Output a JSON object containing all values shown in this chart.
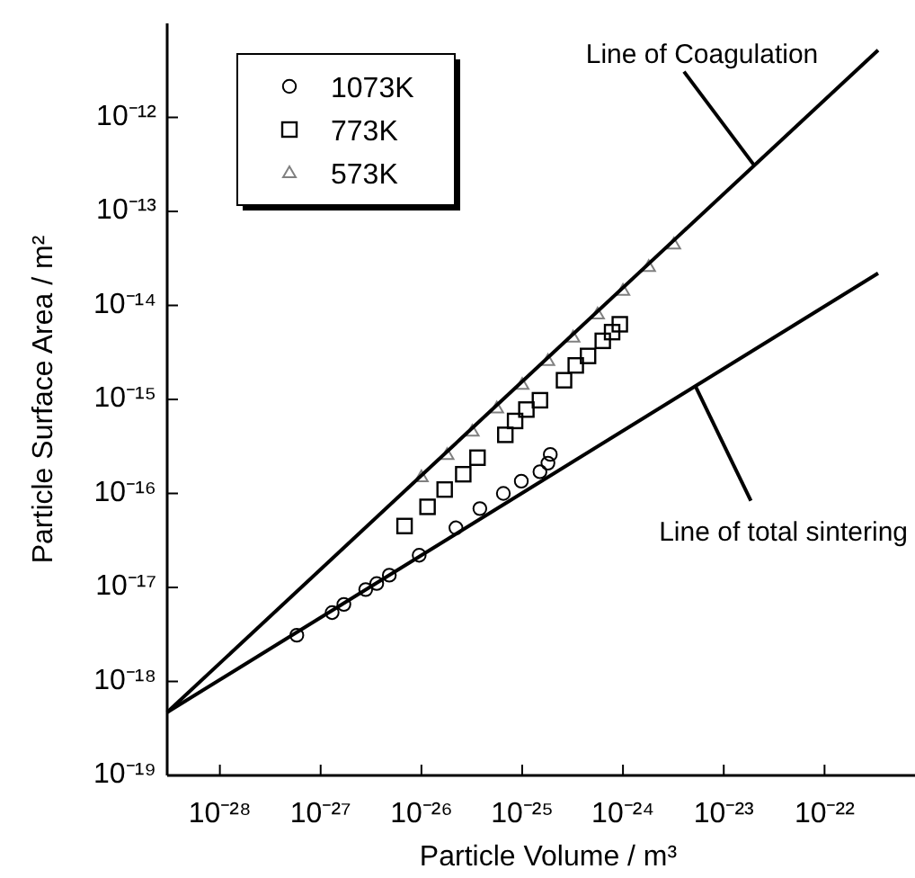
{
  "chart_data": {
    "type": "scatter",
    "xlabel": "Particle Volume / m³",
    "ylabel": "Particle Surface Area / m²",
    "log": "xy",
    "legend": "top left",
    "annotations": [
      {
        "text": "Line of Coagulation",
        "x": 2e-23,
        "y": 3.1e-13
      },
      {
        "text": "Line of total sintering",
        "x": 5.2e-24,
        "y": 1.4e-15
      }
    ],
    "xlim": [
      3e-29,
      7.9e-22
    ],
    "ylim": [
      1e-19,
      1e-11
    ],
    "xticks": [
      {
        "value": 1e-28,
        "label": "10⁻²⁸"
      },
      {
        "value": 1e-27,
        "label": "10⁻²⁷"
      },
      {
        "value": 1e-26,
        "label": "10⁻²⁶"
      },
      {
        "value": 1e-25,
        "label": "10⁻²⁵"
      },
      {
        "value": 1e-24,
        "label": "10⁻²⁴"
      },
      {
        "value": 1e-23,
        "label": "10⁻²³"
      },
      {
        "value": 1e-22,
        "label": "10⁻²²"
      }
    ],
    "yticks": [
      {
        "value": 1e-19,
        "label": "10⁻¹⁹"
      },
      {
        "value": 1e-18,
        "label": "10⁻¹⁸"
      },
      {
        "value": 1e-17,
        "label": "10⁻¹⁷"
      },
      {
        "value": 1e-16,
        "label": "10⁻¹⁶"
      },
      {
        "value": 1e-15,
        "label": "10⁻¹⁵"
      },
      {
        "value": 1e-14,
        "label": "10⁻¹⁴"
      },
      {
        "value": 1e-13,
        "label": "10⁻¹³"
      },
      {
        "value": 1e-12,
        "label": "10⁻¹²"
      }
    ],
    "series": [
      {
        "name": "1073K",
        "marker": "circle",
        "color": "#000000",
        "x": [
          5.8e-28,
          1.3e-27,
          1.7e-27,
          2.8e-27,
          3.6e-27,
          4.8e-27,
          9.5e-27,
          2.2e-26,
          3.8e-26,
          6.5e-26,
          9.8e-26,
          1.5e-25,
          1.8e-25,
          1.9e-25
        ],
        "values": [
          3.1e-18,
          5.4e-18,
          6.6e-18,
          9.5e-18,
          1.1e-17,
          1.35e-17,
          2.2e-17,
          4.3e-17,
          6.9e-17,
          1e-16,
          1.35e-16,
          1.7e-16,
          2.1e-16,
          2.6e-16
        ]
      },
      {
        "name": "773K",
        "marker": "square",
        "color": "#000000",
        "x": [
          6.8e-27,
          1.15e-26,
          1.7e-26,
          2.6e-26,
          3.6e-26,
          6.8e-26,
          8.5e-26,
          1.1e-25,
          1.5e-25,
          2.6e-25,
          3.4e-25,
          4.5e-25,
          6.3e-25,
          7.8e-25,
          9.3e-25
        ],
        "values": [
          4.5e-17,
          7.2e-17,
          1.1e-16,
          1.6e-16,
          2.4e-16,
          4.2e-16,
          5.9e-16,
          7.8e-16,
          9.8e-16,
          1.6e-15,
          2.3e-15,
          2.9e-15,
          4.2e-15,
          5.2e-15,
          6.3e-15
        ]
      },
      {
        "name": "573K",
        "marker": "triangle",
        "color": "#808080",
        "x": [
          1e-26,
          1.8e-26,
          3.2e-26,
          5.6e-26,
          1e-25,
          1.8e-25,
          3.2e-25,
          5.6e-25,
          1e-24,
          1.8e-24,
          3.2e-24
        ],
        "values": [
          1.5e-16,
          2.6e-16,
          4.6e-16,
          8.1e-16,
          1.45e-15,
          2.6e-15,
          4.6e-15,
          8.1e-15,
          1.45e-14,
          2.6e-14,
          4.5e-14
        ]
      },
      {
        "type": "line",
        "marker": "none",
        "line_style": "solid",
        "color": "#000000",
        "x": [
          3e-29,
          3.4e-22
        ],
        "values": [
          4.7e-19,
          5.2e-12
        ]
      },
      {
        "type": "line",
        "marker": "none",
        "line_style": "solid",
        "color": "#000000",
        "x": [
          3e-29,
          3.4e-22
        ],
        "values": [
          4.7e-19,
          2.2e-14
        ]
      }
    ]
  }
}
